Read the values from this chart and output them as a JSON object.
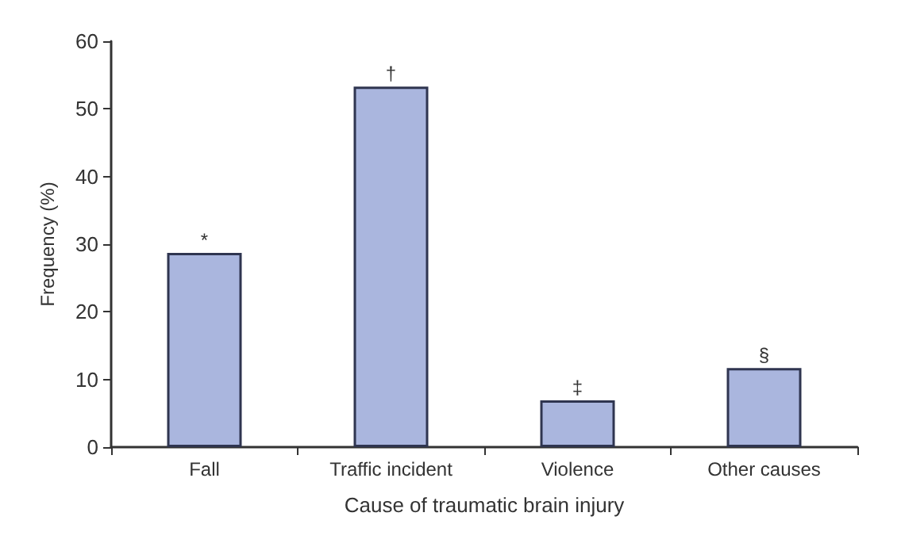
{
  "chart_data": {
    "type": "bar",
    "xlabel": "Cause of traumatic brain injury",
    "ylabel": "Frequency (%)",
    "categories": [
      "Fall",
      "Traffic incident",
      "Violence",
      "Other causes"
    ],
    "values": [
      28.7,
      53.3,
      6.9,
      11.7
    ],
    "color": "#aab6de",
    "ylim": [
      0,
      60
    ],
    "yticks": [
      0,
      10,
      20,
      30,
      40,
      50,
      60
    ],
    "grid": false,
    "annotations": [
      {
        "text": "*",
        "x": "Fall",
        "y": 28.7
      },
      {
        "text": "†",
        "x": "Traffic incident",
        "y": 53.3
      },
      {
        "text": "‡",
        "x": "Violence",
        "y": 6.9
      },
      {
        "text": "§",
        "x": "Other causes",
        "y": 11.7
      }
    ]
  }
}
